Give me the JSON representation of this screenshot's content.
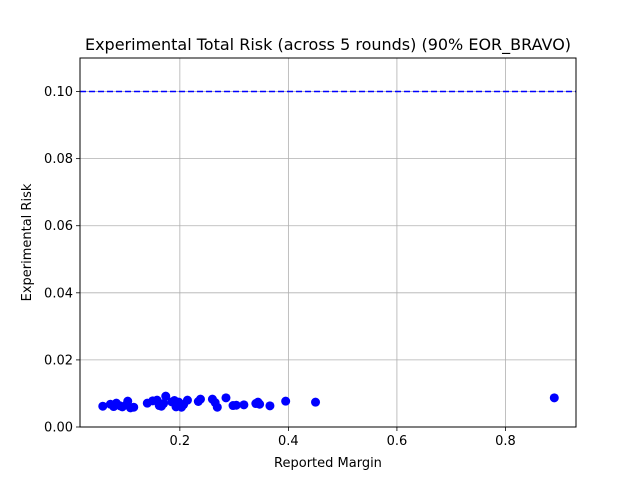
{
  "chart_data": {
    "type": "scatter",
    "title": "Experimental Total Risk (across 5 rounds) (90% EOR_BRAVO)",
    "xlabel": "Reported Margin",
    "ylabel": "Experimental Risk",
    "xlim": [
      0.016,
      0.93
    ],
    "ylim": [
      0.0,
      0.11
    ],
    "xticks": [
      0.2,
      0.4,
      0.6,
      0.8
    ],
    "xtick_labels": [
      "0.2",
      "0.4",
      "0.6",
      "0.8"
    ],
    "yticks": [
      0.0,
      0.02,
      0.04,
      0.06,
      0.08,
      0.1
    ],
    "ytick_labels": [
      "0.00",
      "0.02",
      "0.04",
      "0.06",
      "0.08",
      "0.10"
    ],
    "grid": true,
    "point_color": "#0000ff",
    "threshold": {
      "y": 0.1,
      "style": "dashed",
      "color": "#0000ff"
    },
    "points": [
      {
        "x": 0.058,
        "y": 0.0062
      },
      {
        "x": 0.072,
        "y": 0.0068
      },
      {
        "x": 0.078,
        "y": 0.0061
      },
      {
        "x": 0.083,
        "y": 0.0071
      },
      {
        "x": 0.09,
        "y": 0.0063
      },
      {
        "x": 0.094,
        "y": 0.006
      },
      {
        "x": 0.102,
        "y": 0.0067
      },
      {
        "x": 0.104,
        "y": 0.0077
      },
      {
        "x": 0.109,
        "y": 0.0057
      },
      {
        "x": 0.115,
        "y": 0.0059
      },
      {
        "x": 0.14,
        "y": 0.0071
      },
      {
        "x": 0.15,
        "y": 0.0078
      },
      {
        "x": 0.158,
        "y": 0.008
      },
      {
        "x": 0.162,
        "y": 0.0064
      },
      {
        "x": 0.166,
        "y": 0.0062
      },
      {
        "x": 0.17,
        "y": 0.007
      },
      {
        "x": 0.174,
        "y": 0.0092
      },
      {
        "x": 0.185,
        "y": 0.0075
      },
      {
        "x": 0.19,
        "y": 0.0079
      },
      {
        "x": 0.193,
        "y": 0.006
      },
      {
        "x": 0.198,
        "y": 0.0074
      },
      {
        "x": 0.203,
        "y": 0.0059
      },
      {
        "x": 0.207,
        "y": 0.0067
      },
      {
        "x": 0.214,
        "y": 0.008
      },
      {
        "x": 0.234,
        "y": 0.0076
      },
      {
        "x": 0.238,
        "y": 0.0083
      },
      {
        "x": 0.26,
        "y": 0.0083
      },
      {
        "x": 0.265,
        "y": 0.0073
      },
      {
        "x": 0.269,
        "y": 0.0059
      },
      {
        "x": 0.285,
        "y": 0.0087
      },
      {
        "x": 0.298,
        "y": 0.0064
      },
      {
        "x": 0.304,
        "y": 0.0065
      },
      {
        "x": 0.318,
        "y": 0.0066
      },
      {
        "x": 0.34,
        "y": 0.007
      },
      {
        "x": 0.344,
        "y": 0.0074
      },
      {
        "x": 0.347,
        "y": 0.0068
      },
      {
        "x": 0.366,
        "y": 0.0063
      },
      {
        "x": 0.395,
        "y": 0.0077
      },
      {
        "x": 0.45,
        "y": 0.0074
      },
      {
        "x": 0.89,
        "y": 0.0087
      }
    ]
  }
}
